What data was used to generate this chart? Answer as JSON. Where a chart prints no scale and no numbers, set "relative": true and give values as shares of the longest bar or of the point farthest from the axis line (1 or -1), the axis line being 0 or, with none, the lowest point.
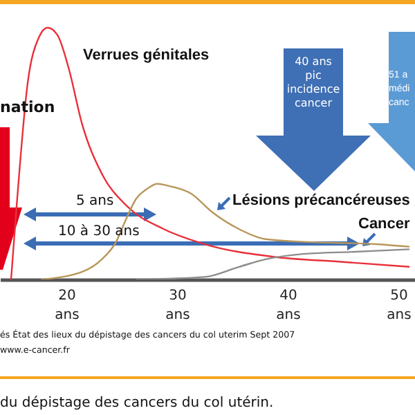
{
  "chart_data": {
    "type": "line",
    "relative": true,
    "xlim": [
      14,
      51.5
    ],
    "xticks": [
      {
        "value": 20,
        "label": "20 ans"
      },
      {
        "value": 30,
        "label": "30 ans"
      },
      {
        "value": 40,
        "label": "40 ans"
      },
      {
        "value": 50,
        "label": "50 ans"
      }
    ],
    "series": [
      {
        "name": "Verrues génitales",
        "color": "#e8303a",
        "x": [
          15.0,
          15.5,
          16.5,
          17.5,
          18.3,
          19.2,
          20.2,
          21.4,
          23.2,
          25.5,
          28.8,
          32.5,
          38.7,
          44.8,
          51
        ],
        "values": [
          0,
          0.29,
          0.78,
          0.96,
          1,
          0.97,
          0.84,
          0.62,
          0.42,
          0.29,
          0.2,
          0.14,
          0.09,
          0.07,
          0.05
        ]
      },
      {
        "name": "Lésions précancéreuses",
        "color": "#b8965a",
        "x": [
          17.7,
          21.4,
          23.2,
          24.5,
          25.3,
          26.3,
          27.3,
          28.2,
          29.4,
          31.3,
          33.1,
          35.6,
          38,
          41.1,
          48,
          51
        ],
        "values": [
          0,
          0.03,
          0.08,
          0.15,
          0.23,
          0.32,
          0.36,
          0.38,
          0.37,
          0.34,
          0.27,
          0.2,
          0.16,
          0.15,
          0.14,
          0.13
        ]
      },
      {
        "name": "Cancer",
        "color": "#8c8c8c",
        "x": [
          26.3,
          32.5,
          35.6,
          38,
          41.1,
          46.1,
          51
        ],
        "values": [
          0,
          0.01,
          0.05,
          0.08,
          0.1,
          0.11,
          0.12
        ]
      }
    ],
    "annotations": [
      "nation",
      "40 ans\npic\nincidence\ncancer",
      "51 a\nmédi\ncanc",
      "5 ans",
      "10 à 30 ans",
      "és État des lieux du dépistage des cancers du col uterim Sept 2007",
      "www.e-cancer.fr",
      "du dépistage des cancers du col utérin."
    ]
  }
}
